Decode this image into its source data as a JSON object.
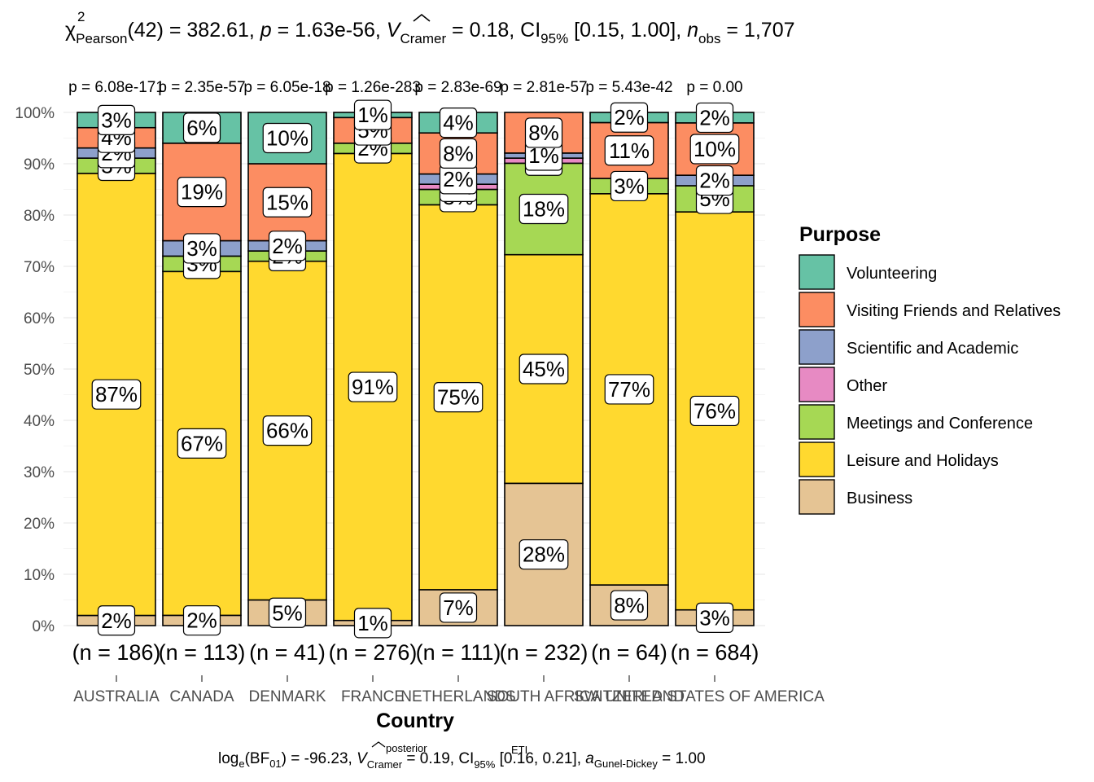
{
  "chart_data": {
    "type": "bar",
    "stacked": true,
    "percent_axis": true,
    "title": {
      "stat": "χ",
      "stat_sup": "2",
      "stat_sub": "Pearson",
      "df_text": "(42) = 382.61, ",
      "p_sym": "p",
      "p_text": " = 1.63e-56, ",
      "v_sym": "V",
      "v_sub": "Cramer",
      "v_text": " = 0.18, CI",
      "ci_sub": "95%",
      "ci_text": " [0.15, 1.00], ",
      "n_sym": "n",
      "n_sub": "obs",
      "n_text": " = 1,707"
    },
    "caption": {
      "log_text": "log",
      "log_sub": "e",
      "bf_text": "(BF",
      "bf_sub": "01",
      "bf_val": ") = -96.23, ",
      "v_sym": "V",
      "v_sup": "posterior",
      "v_sub": "Cramer",
      "v_text": " = 0.19, CI",
      "ci_sup": "ETI",
      "ci_sub": "95%",
      "ci_text": " [0.16, 0.21], ",
      "a_sym": "a",
      "a_sub": "Gunel-Dickey",
      "a_text": " = 1.00"
    },
    "xlabel": "Country",
    "ylabel": "",
    "ylim": [
      0,
      100
    ],
    "y_ticks": [
      "0%",
      "10%",
      "20%",
      "30%",
      "40%",
      "50%",
      "60%",
      "70%",
      "80%",
      "90%",
      "100%"
    ],
    "legend": {
      "title": "Purpose",
      "position": "right",
      "entries": [
        "Volunteering",
        "Visiting Friends and Relatives",
        "Scientific and Academic",
        "Other",
        "Meetings and Conference",
        "Leisure and Holidays",
        "Business"
      ]
    },
    "colors": {
      "Business": "#E5C494",
      "Leisure and Holidays": "#FFD92F",
      "Meetings and Conference": "#A6D854",
      "Other": "#E78AC3",
      "Scientific and Academic": "#8DA0CB",
      "Visiting Friends and Relatives": "#FC8D62",
      "Volunteering": "#66C2A5"
    },
    "stack_order": [
      "Business",
      "Leisure and Holidays",
      "Meetings and Conference",
      "Other",
      "Scientific and Academic",
      "Visiting Friends and Relatives",
      "Volunteering"
    ],
    "categories": [
      "AUSTRALIA",
      "CANADA",
      "DENMARK",
      "FRANCE",
      "NETHERLANDS",
      "SOUTH AFRICA",
      "SWITZERLAND",
      "UNITED STATES OF AMERICA"
    ],
    "p_labels": [
      "p = 6.08e-171",
      "p = 2.35e-57",
      "p = 6.05e-18",
      "p = 1.26e-283",
      "p = 2.83e-69",
      "p = 2.81e-57",
      "p = 5.43e-42",
      "p = 0.00"
    ],
    "n_labels": [
      "(n = 186)",
      "(n = 113)",
      "(n = 41)",
      "(n = 276)",
      "(n = 111)",
      "(n = 232)",
      "(n = 64)",
      "(n = 684)"
    ],
    "series": [
      {
        "name": "Business",
        "values": [
          2,
          2,
          5,
          1,
          7,
          28,
          8,
          3
        ],
        "labels": [
          "2%",
          "2%",
          "5%",
          "1%",
          "7%",
          "28%",
          "8%",
          "3%"
        ]
      },
      {
        "name": "Leisure and Holidays",
        "values": [
          87,
          67,
          66,
          91,
          75,
          45,
          77,
          76
        ],
        "labels": [
          "87%",
          "67%",
          "66%",
          "91%",
          "75%",
          "45%",
          "77%",
          "76%"
        ]
      },
      {
        "name": "Meetings and Conference",
        "values": [
          3,
          3,
          2,
          2,
          3,
          18,
          3,
          5
        ],
        "labels": [
          "3%",
          "3%",
          "2%",
          "2%",
          "3%",
          "18%",
          "3%",
          "5%"
        ]
      },
      {
        "name": "Other",
        "values": [
          0,
          0,
          0,
          0,
          1,
          1,
          0,
          0
        ],
        "labels": [
          "",
          "",
          "",
          "",
          "1%",
          "1%",
          "",
          ""
        ]
      },
      {
        "name": "Scientific and Academic",
        "values": [
          2,
          3,
          2,
          0,
          2,
          1,
          0,
          2
        ],
        "labels": [
          "2%",
          "3%",
          "2%",
          "",
          "2%",
          "1%",
          "",
          "2%"
        ]
      },
      {
        "name": "Visiting Friends and Relatives",
        "values": [
          4,
          19,
          15,
          5,
          8,
          8,
          11,
          10
        ],
        "labels": [
          "4%",
          "19%",
          "15%",
          "5%",
          "8%",
          "8%",
          "11%",
          "10%"
        ]
      },
      {
        "name": "Volunteering",
        "values": [
          3,
          6,
          10,
          1,
          4,
          0,
          2,
          2
        ],
        "labels": [
          "3%",
          "6%",
          "10%",
          "1%",
          "4%",
          "",
          "2%",
          "2%"
        ]
      }
    ]
  }
}
